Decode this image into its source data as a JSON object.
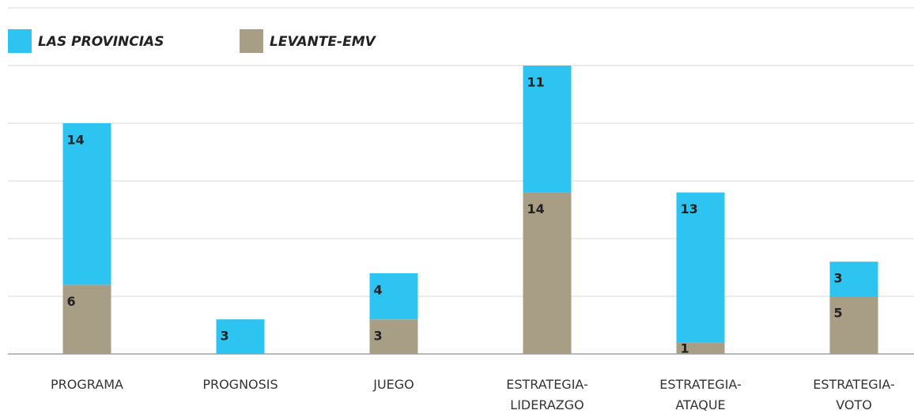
{
  "chart_data": {
    "type": "stacked_bar",
    "categories": [
      [
        "PROGRAMA"
      ],
      [
        "PROGNOSIS"
      ],
      [
        "JUEGO"
      ],
      [
        "ESTRATEGIA-",
        "LIDERAZGO"
      ],
      [
        "ESTRATEGIA-",
        "ATAQUE"
      ],
      [
        "ESTRATEGIA-",
        "VOTO"
      ]
    ],
    "series": [
      {
        "name": "LEVANTE-EMV",
        "color": "#a89d85",
        "values": [
          6,
          null,
          3,
          14,
          1,
          5
        ]
      },
      {
        "name": "LAS PROVINCIAS",
        "color": "#2ec4f2",
        "values": [
          14,
          3,
          4,
          11,
          13,
          3
        ]
      }
    ],
    "legend_order": [
      1,
      0
    ],
    "ylim": [
      0,
      30
    ],
    "yticks": [
      0,
      5,
      10,
      15,
      20,
      25,
      30
    ],
    "grid": true
  }
}
